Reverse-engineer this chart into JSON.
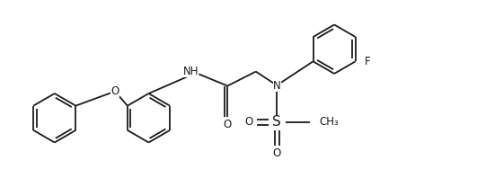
{
  "bg_color": "#ffffff",
  "line_color": "#1a1a1a",
  "lw": 1.3,
  "fs": 8.5,
  "fig_width": 5.31,
  "fig_height": 2.08,
  "dpi": 100,
  "xlim": [
    0,
    10.62
  ],
  "ylim": [
    -1.2,
    3.2
  ]
}
